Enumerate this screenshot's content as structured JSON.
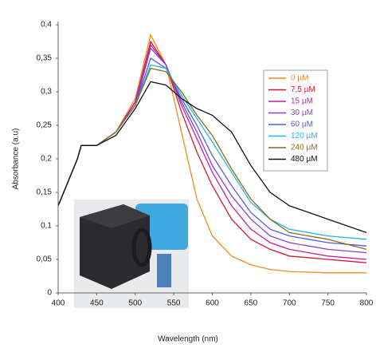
{
  "chart_data": {
    "type": "line",
    "xlabel": "Wavelength (nm)",
    "ylabel": "Absorbance (a.u)",
    "x": [
      400,
      425,
      430,
      450,
      475,
      500,
      520,
      540,
      560,
      580,
      600,
      625,
      650,
      675,
      700,
      750,
      800
    ],
    "series": [
      {
        "name": "0 µM",
        "color": "#f28a1e",
        "values": [
          0.13,
          0.2,
          0.22,
          0.22,
          0.24,
          0.29,
          0.385,
          0.34,
          0.24,
          0.14,
          0.085,
          0.055,
          0.042,
          0.035,
          0.032,
          0.03,
          0.03
        ]
      },
      {
        "name": "7,5 µM",
        "color": "#d8152f",
        "values": [
          0.13,
          0.2,
          0.22,
          0.22,
          0.24,
          0.285,
          0.375,
          0.34,
          0.27,
          0.21,
          0.16,
          0.11,
          0.08,
          0.065,
          0.055,
          0.05,
          0.045
        ]
      },
      {
        "name": "15 µM",
        "color": "#c21fa8",
        "values": [
          0.13,
          0.2,
          0.22,
          0.22,
          0.24,
          0.285,
          0.37,
          0.34,
          0.28,
          0.23,
          0.18,
          0.13,
          0.095,
          0.075,
          0.065,
          0.055,
          0.05
        ]
      },
      {
        "name": "30 µM",
        "color": "#8a3fd0",
        "values": [
          0.13,
          0.2,
          0.22,
          0.22,
          0.24,
          0.28,
          0.365,
          0.34,
          0.285,
          0.24,
          0.19,
          0.145,
          0.11,
          0.085,
          0.075,
          0.065,
          0.06
        ]
      },
      {
        "name": "60 µM",
        "color": "#4a5fe0",
        "values": [
          0.13,
          0.2,
          0.22,
          0.22,
          0.24,
          0.28,
          0.35,
          0.335,
          0.29,
          0.25,
          0.205,
          0.16,
          0.12,
          0.095,
          0.085,
          0.075,
          0.07
        ]
      },
      {
        "name": "120 µM",
        "color": "#1fb8e8",
        "values": [
          0.13,
          0.2,
          0.22,
          0.22,
          0.24,
          0.28,
          0.34,
          0.335,
          0.295,
          0.26,
          0.225,
          0.18,
          0.135,
          0.11,
          0.095,
          0.085,
          0.08
        ]
      },
      {
        "name": "240 µM",
        "color": "#8c6a1a",
        "values": [
          0.13,
          0.2,
          0.22,
          0.22,
          0.24,
          0.28,
          0.335,
          0.33,
          0.3,
          0.265,
          0.235,
          0.185,
          0.14,
          0.11,
          0.09,
          0.08,
          0.065
        ]
      },
      {
        "name": "480 µM",
        "color": "#111111",
        "values": [
          0.13,
          0.2,
          0.22,
          0.22,
          0.235,
          0.275,
          0.315,
          0.31,
          0.29,
          0.275,
          0.265,
          0.24,
          0.19,
          0.15,
          0.13,
          0.11,
          0.09
        ]
      }
    ],
    "xlim": [
      400,
      800
    ],
    "xticks": [
      400,
      450,
      500,
      550,
      600,
      650,
      700,
      750,
      800
    ],
    "ylim": [
      0,
      0.4
    ],
    "yticks": [
      0,
      {
        "value": 0.05,
        "label": "0,05"
      },
      {
        "value": 0.1,
        "label": "0,1"
      },
      {
        "value": 0.15,
        "label": "0,15"
      },
      {
        "value": 0.2,
        "label": "0,2"
      },
      {
        "value": 0.25,
        "label": "0,25"
      },
      {
        "value": 0.3,
        "label": "0,3"
      },
      {
        "value": 0.35,
        "label": "0,35"
      },
      {
        "value": 0.4,
        "label": "0,4"
      }
    ],
    "legend": "upper right"
  }
}
